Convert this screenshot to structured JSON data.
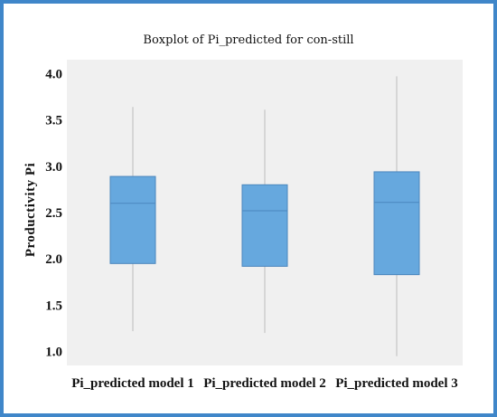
{
  "chart_data": {
    "type": "boxplot",
    "title": "Boxplot of Pi_predicted for con-still",
    "xlabel": "",
    "ylabel": "Productivity Pi",
    "ylim": [
      0.85,
      4.15
    ],
    "yticks": [
      "1.0",
      "1.5",
      "2.0",
      "2.5",
      "3.0",
      "3.5",
      "4.0"
    ],
    "ytick_values": [
      1.0,
      1.5,
      2.0,
      2.5,
      3.0,
      3.5,
      4.0
    ],
    "grid": false,
    "categories": [
      "Pi_predicted model 1",
      "Pi_predicted model 2",
      "Pi_predicted model 3"
    ],
    "boxes": [
      {
        "min": 1.22,
        "q1": 1.95,
        "median": 2.6,
        "q3": 2.89,
        "max": 3.64
      },
      {
        "min": 1.2,
        "q1": 1.92,
        "median": 2.52,
        "q3": 2.8,
        "max": 3.61
      },
      {
        "min": 0.95,
        "q1": 1.83,
        "median": 2.61,
        "q3": 2.94,
        "max": 3.97
      }
    ],
    "colors": {
      "box_fill": "#66a8de",
      "box_stroke": "#4a86bd",
      "whisker": "#bdbdbd",
      "plot_bg": "#f0f0f0",
      "frame": "#3f86c9"
    }
  }
}
